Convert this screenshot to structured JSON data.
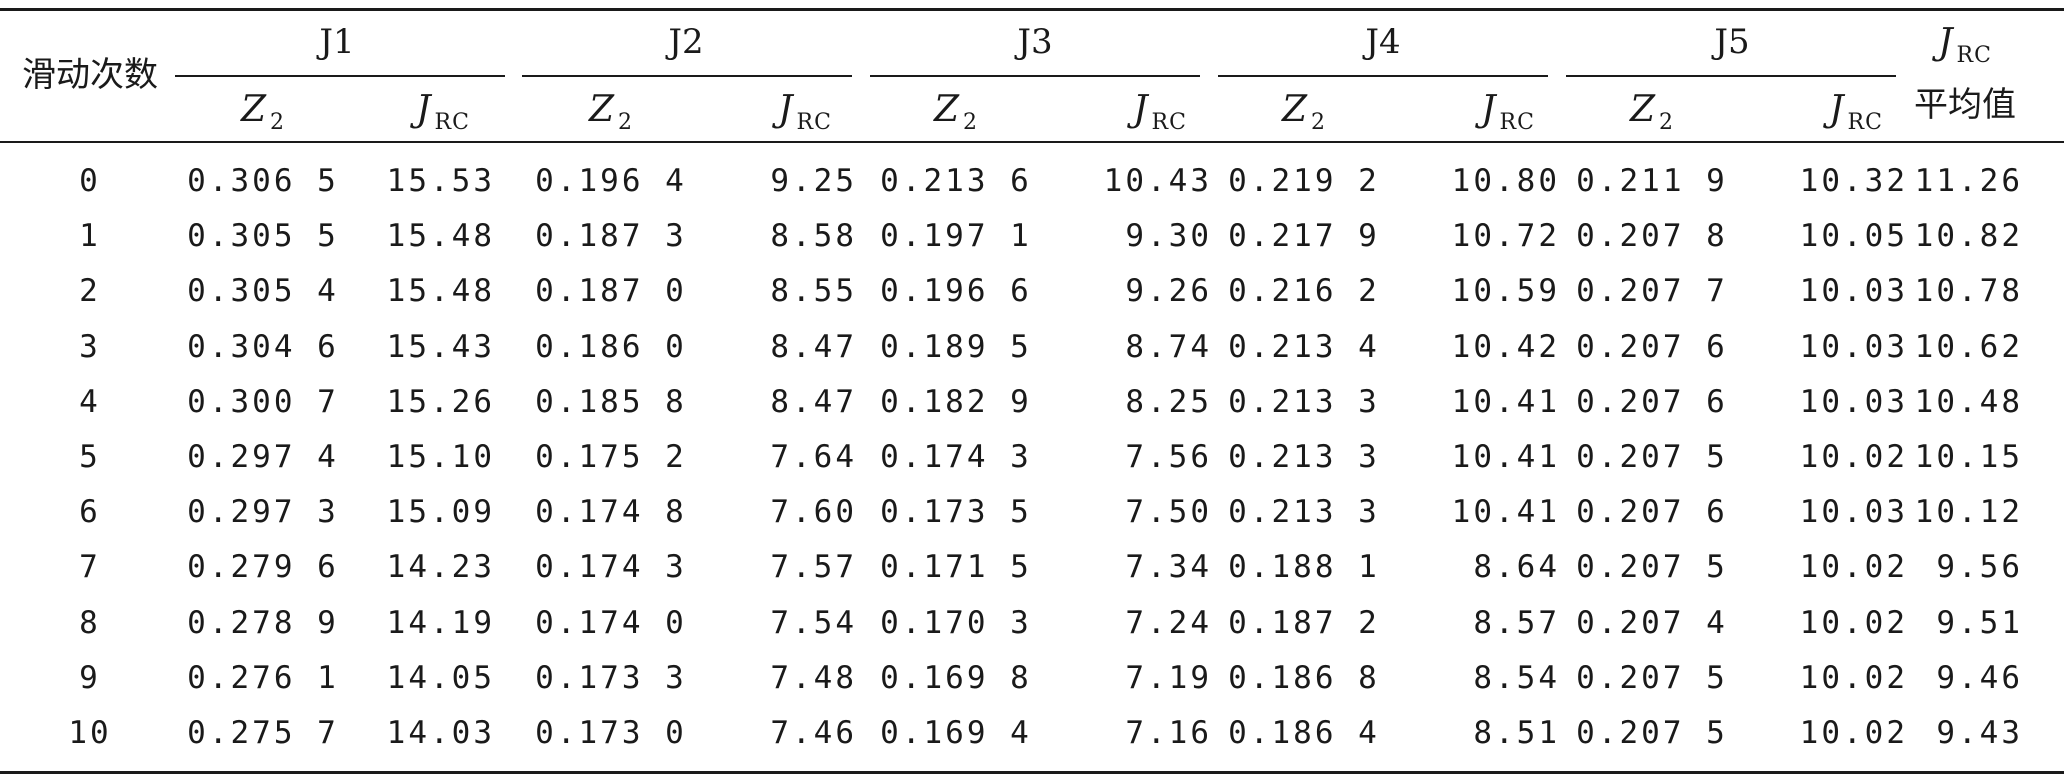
{
  "table": {
    "header": {
      "row_label": "滑动次数",
      "groups": [
        "J1",
        "J2",
        "J3",
        "J4",
        "J5"
      ],
      "sub_z_main": "Z",
      "sub_z_sub": "2",
      "sub_j_main": "J",
      "sub_j_sub": "RC",
      "avg_main": "J",
      "avg_sub": "RC",
      "avg_label": "平均值"
    },
    "rows": [
      {
        "n": "0",
        "j1z": "0.306 5",
        "j1j": "15.53",
        "j2z": "0.196 4",
        "j2j": "9.25",
        "j3z": "0.213 6",
        "j3j": "10.43",
        "j4z": "0.219 2",
        "j4j": "10.80",
        "j5z": "0.211 9",
        "j5j": "10.32",
        "avg": "11.26"
      },
      {
        "n": "1",
        "j1z": "0.305 5",
        "j1j": "15.48",
        "j2z": "0.187 3",
        "j2j": "8.58",
        "j3z": "0.197 1",
        "j3j": "9.30",
        "j4z": "0.217 9",
        "j4j": "10.72",
        "j5z": "0.207 8",
        "j5j": "10.05",
        "avg": "10.82"
      },
      {
        "n": "2",
        "j1z": "0.305 4",
        "j1j": "15.48",
        "j2z": "0.187 0",
        "j2j": "8.55",
        "j3z": "0.196 6",
        "j3j": "9.26",
        "j4z": "0.216 2",
        "j4j": "10.59",
        "j5z": "0.207 7",
        "j5j": "10.03",
        "avg": "10.78"
      },
      {
        "n": "3",
        "j1z": "0.304 6",
        "j1j": "15.43",
        "j2z": "0.186 0",
        "j2j": "8.47",
        "j3z": "0.189 5",
        "j3j": "8.74",
        "j4z": "0.213 4",
        "j4j": "10.42",
        "j5z": "0.207 6",
        "j5j": "10.03",
        "avg": "10.62"
      },
      {
        "n": "4",
        "j1z": "0.300 7",
        "j1j": "15.26",
        "j2z": "0.185 8",
        "j2j": "8.47",
        "j3z": "0.182 9",
        "j3j": "8.25",
        "j4z": "0.213 3",
        "j4j": "10.41",
        "j5z": "0.207 6",
        "j5j": "10.03",
        "avg": "10.48"
      },
      {
        "n": "5",
        "j1z": "0.297 4",
        "j1j": "15.10",
        "j2z": "0.175 2",
        "j2j": "7.64",
        "j3z": "0.174 3",
        "j3j": "7.56",
        "j4z": "0.213 3",
        "j4j": "10.41",
        "j5z": "0.207 5",
        "j5j": "10.02",
        "avg": "10.15"
      },
      {
        "n": "6",
        "j1z": "0.297 3",
        "j1j": "15.09",
        "j2z": "0.174 8",
        "j2j": "7.60",
        "j3z": "0.173 5",
        "j3j": "7.50",
        "j4z": "0.213 3",
        "j4j": "10.41",
        "j5z": "0.207 6",
        "j5j": "10.03",
        "avg": "10.12"
      },
      {
        "n": "7",
        "j1z": "0.279 6",
        "j1j": "14.23",
        "j2z": "0.174 3",
        "j2j": "7.57",
        "j3z": "0.171 5",
        "j3j": "7.34",
        "j4z": "0.188 1",
        "j4j": "8.64",
        "j5z": "0.207 5",
        "j5j": "10.02",
        "avg": "9.56"
      },
      {
        "n": "8",
        "j1z": "0.278 9",
        "j1j": "14.19",
        "j2z": "0.174 0",
        "j2j": "7.54",
        "j3z": "0.170 3",
        "j3j": "7.24",
        "j4z": "0.187 2",
        "j4j": "8.57",
        "j5z": "0.207 4",
        "j5j": "10.02",
        "avg": "9.51"
      },
      {
        "n": "9",
        "j1z": "0.276 1",
        "j1j": "14.05",
        "j2z": "0.173 3",
        "j2j": "7.48",
        "j3z": "0.169 8",
        "j3j": "7.19",
        "j4z": "0.186 8",
        "j4j": "8.54",
        "j5z": "0.207 5",
        "j5j": "10.02",
        "avg": "9.46"
      },
      {
        "n": "10",
        "j1z": "0.275 7",
        "j1j": "14.03",
        "j2z": "0.173 0",
        "j2j": "7.46",
        "j3z": "0.169 4",
        "j3j": "7.16",
        "j4z": "0.186 4",
        "j4j": "8.51",
        "j5z": "0.207 5",
        "j5j": "10.02",
        "avg": "9.43"
      }
    ]
  }
}
